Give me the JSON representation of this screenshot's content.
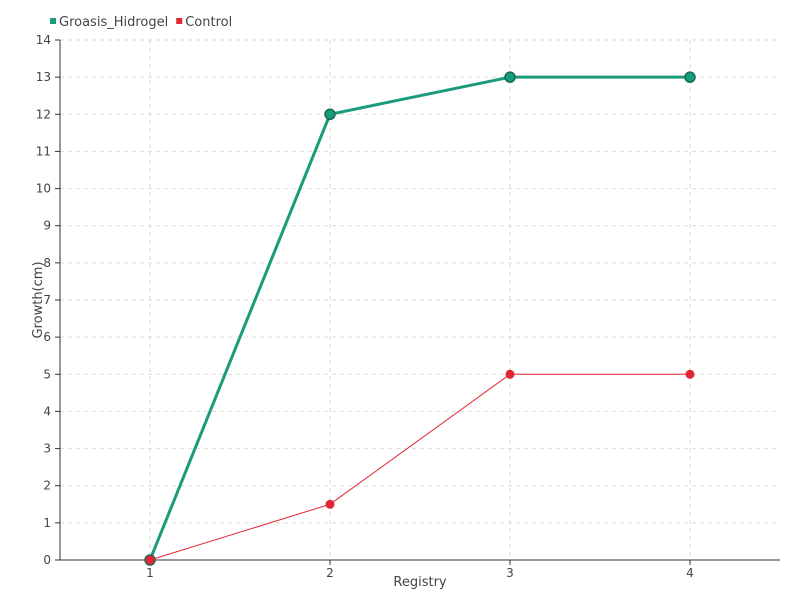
{
  "chart_data": {
    "type": "line",
    "title": "",
    "xlabel": "Registry",
    "ylabel": "Growth(cm)",
    "categories": [
      "1",
      "2",
      "3",
      "4"
    ],
    "ylim": [
      0,
      14
    ],
    "yticks": [
      "0",
      "1",
      "2",
      "3",
      "4",
      "5",
      "6",
      "7",
      "8",
      "9",
      "10",
      "11",
      "12",
      "13",
      "14"
    ],
    "grid": true,
    "legend_position": "top-left",
    "series": [
      {
        "name": "Groasis_Hidrogel",
        "color": "#1a9b7b",
        "values": [
          0,
          12,
          13,
          13
        ]
      },
      {
        "name": "Control",
        "color": "#e32636",
        "values": [
          0,
          1.5,
          5,
          5
        ]
      }
    ]
  }
}
